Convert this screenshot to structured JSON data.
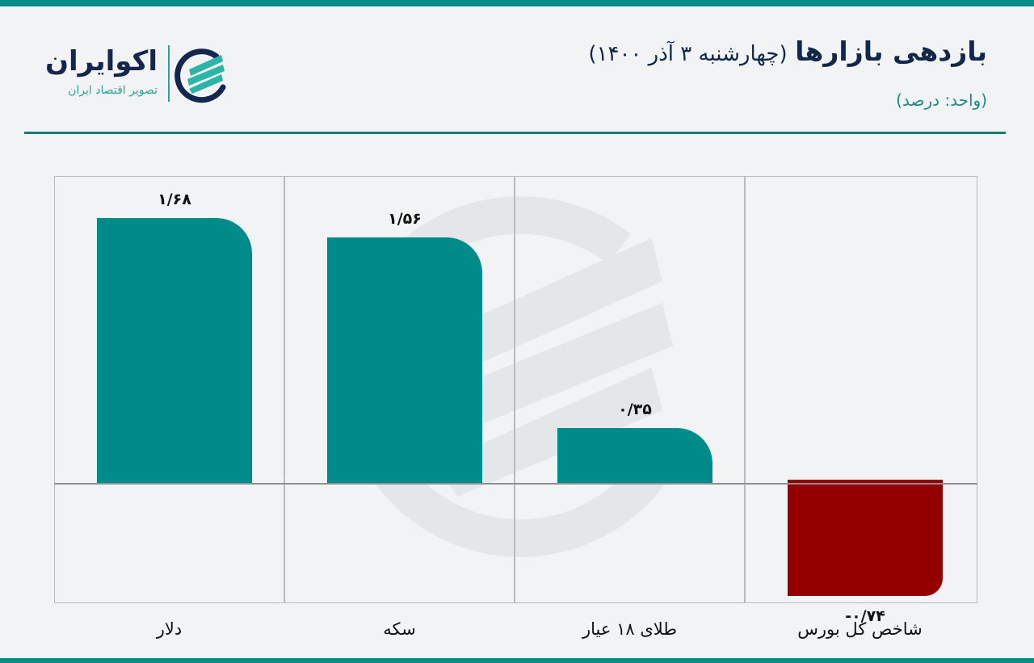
{
  "header": {
    "title_bold": "بازدهی بازارها",
    "title_date": "(چهارشنبه ۳ آذر ۱۴۰۰)",
    "subtitle": "(واحد: درصد)"
  },
  "logo": {
    "name": "اکوایران",
    "tagline": "تصویر اقتصاد ایران"
  },
  "colors": {
    "positive": "#008b8b",
    "negative": "#940000",
    "accent": "#0b8a8a",
    "title": "#11284b"
  },
  "chart_data": {
    "type": "bar",
    "title": "بازدهی بازارها (چهارشنبه ۳ آذر ۱۴۰۰)",
    "subtitle": "(واحد: درصد)",
    "xlabel": "",
    "ylabel": "درصد",
    "categories": [
      "دلار",
      "سکه",
      "طلای ۱۸ عیار",
      "شاخص کل بورس"
    ],
    "values": [
      1.68,
      1.56,
      0.35,
      -0.74
    ],
    "labels": [
      "۱/۶۸",
      "۱/۵۶",
      "۰/۳۵",
      "-۰/۷۴"
    ],
    "ylim": [
      -0.76,
      1.95
    ],
    "grid": "vertical separators only",
    "legend": "none"
  }
}
